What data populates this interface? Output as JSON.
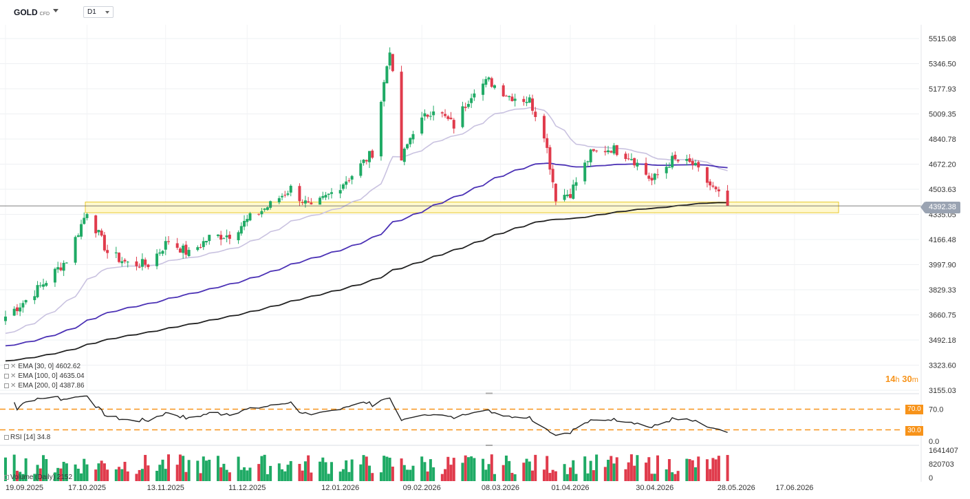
{
  "header": {
    "symbol": "GOLD",
    "instrument_type": "CFD",
    "timeframe": "D1"
  },
  "colors": {
    "up_candle": "#1faa65",
    "down_candle": "#e03b4c",
    "ema30": "#c9c2e0",
    "ema100": "#4b31b5",
    "ema200": "#222222",
    "zone_fill": "#fff6c2",
    "zone_border": "#e8c92c",
    "rsi_levels": "#f7931a"
  },
  "price_axis": {
    "ticks": [
      "5515.08",
      "5346.50",
      "5177.93",
      "5009.35",
      "4840.78",
      "4672.20",
      "4503.63",
      "4335.05",
      "4166.48",
      "3997.90",
      "3829.33",
      "3660.75",
      "3492.18",
      "3323.60",
      "3155.03"
    ],
    "current_price": "4392.38"
  },
  "date_axis": [
    "19.09.2025",
    "17.10.2025",
    "13.11.2025",
    "11.12.2025",
    "12.01.2026",
    "09.02.2026",
    "08.03.2026",
    "01.04.2026",
    "30.04.2026",
    "28.05.2026",
    "17.06.2026"
  ],
  "indicators": [
    {
      "label": "EMA [30, 0]",
      "value": "4602.62"
    },
    {
      "label": "EMA [100, 0]",
      "value": "4635.04"
    },
    {
      "label": "EMA [200, 0]",
      "value": "4387.86"
    }
  ],
  "countdown": {
    "hours": "14",
    "hours_unit": "h",
    "minutes": "30",
    "minutes_unit": "m"
  },
  "rsi": {
    "label": "RSI [14] 34.8",
    "levels": [
      "70.0",
      "30.0"
    ],
    "axis": [
      "70.0",
      "0.0"
    ]
  },
  "volume": {
    "label": "Volume (Daily) 2152",
    "axis": [
      "1641407",
      "820703",
      "0"
    ]
  },
  "chart_data": {
    "type": "candlestick",
    "symbol": "GOLD",
    "timeframe": "D1",
    "last_price": 4392.38,
    "ylim": [
      3155.03,
      5515.08
    ],
    "support_zone": [
      4346,
      4418
    ],
    "anchors": [
      {
        "date": "19.09.2025",
        "close": 3650
      },
      {
        "date": "26.09.2025",
        "close": 3760
      },
      {
        "date": "03.10.2025",
        "close": 3890
      },
      {
        "date": "10.10.2025",
        "close": 4030
      },
      {
        "date": "17.10.2025",
        "close": 4360
      },
      {
        "date": "24.10.2025",
        "close": 4080
      },
      {
        "date": "31.10.2025",
        "close": 4005
      },
      {
        "date": "07.11.2025",
        "close": 4000
      },
      {
        "date": "14.11.2025",
        "close": 4160
      },
      {
        "date": "21.11.2025",
        "close": 4070
      },
      {
        "date": "28.11.2025",
        "close": 4180
      },
      {
        "date": "05.12.2025",
        "close": 4200
      },
      {
        "date": "12.12.2025",
        "close": 4310
      },
      {
        "date": "19.12.2025",
        "close": 4400
      },
      {
        "date": "26.12.2025",
        "close": 4510
      },
      {
        "date": "02.01.2026",
        "close": 4370
      },
      {
        "date": "09.01.2026",
        "close": 4480
      },
      {
        "date": "16.01.2026",
        "close": 4600
      },
      {
        "date": "23.01.2026",
        "close": 4750
      },
      {
        "date": "29.01.2026",
        "close": 5450
      },
      {
        "date": "02.02.2026",
        "close": 4700
      },
      {
        "date": "06.02.2026",
        "close": 4900
      },
      {
        "date": "13.02.2026",
        "close": 5050
      },
      {
        "date": "20.02.2026",
        "close": 4930
      },
      {
        "date": "27.02.2026",
        "close": 5180
      },
      {
        "date": "04.03.2026",
        "close": 5230
      },
      {
        "date": "11.03.2026",
        "close": 5130
      },
      {
        "date": "18.03.2026",
        "close": 5100
      },
      {
        "date": "23.03.2026",
        "close": 4880
      },
      {
        "date": "27.03.2026",
        "close": 4450
      },
      {
        "date": "01.04.2026",
        "close": 4480
      },
      {
        "date": "08.04.2026",
        "close": 4740
      },
      {
        "date": "15.04.2026",
        "close": 4780
      },
      {
        "date": "22.04.2026",
        "close": 4720
      },
      {
        "date": "29.04.2026",
        "close": 4560
      },
      {
        "date": "06.05.2026",
        "close": 4700
      },
      {
        "date": "13.05.2026",
        "close": 4670
      },
      {
        "date": "19.05.2026",
        "close": 4530
      },
      {
        "date": "25.05.2026",
        "close": 4392
      }
    ],
    "ema": [
      {
        "name": "EMA [30, 0]",
        "last": 4602.62
      },
      {
        "name": "EMA [100, 0]",
        "last": 4635.04
      },
      {
        "name": "EMA [200, 0]",
        "last": 4387.86
      }
    ],
    "rsi": {
      "period": 14,
      "last": 34.8,
      "upper": 70,
      "lower": 30
    },
    "volume_last": 2152,
    "volume_max": 1641407
  }
}
